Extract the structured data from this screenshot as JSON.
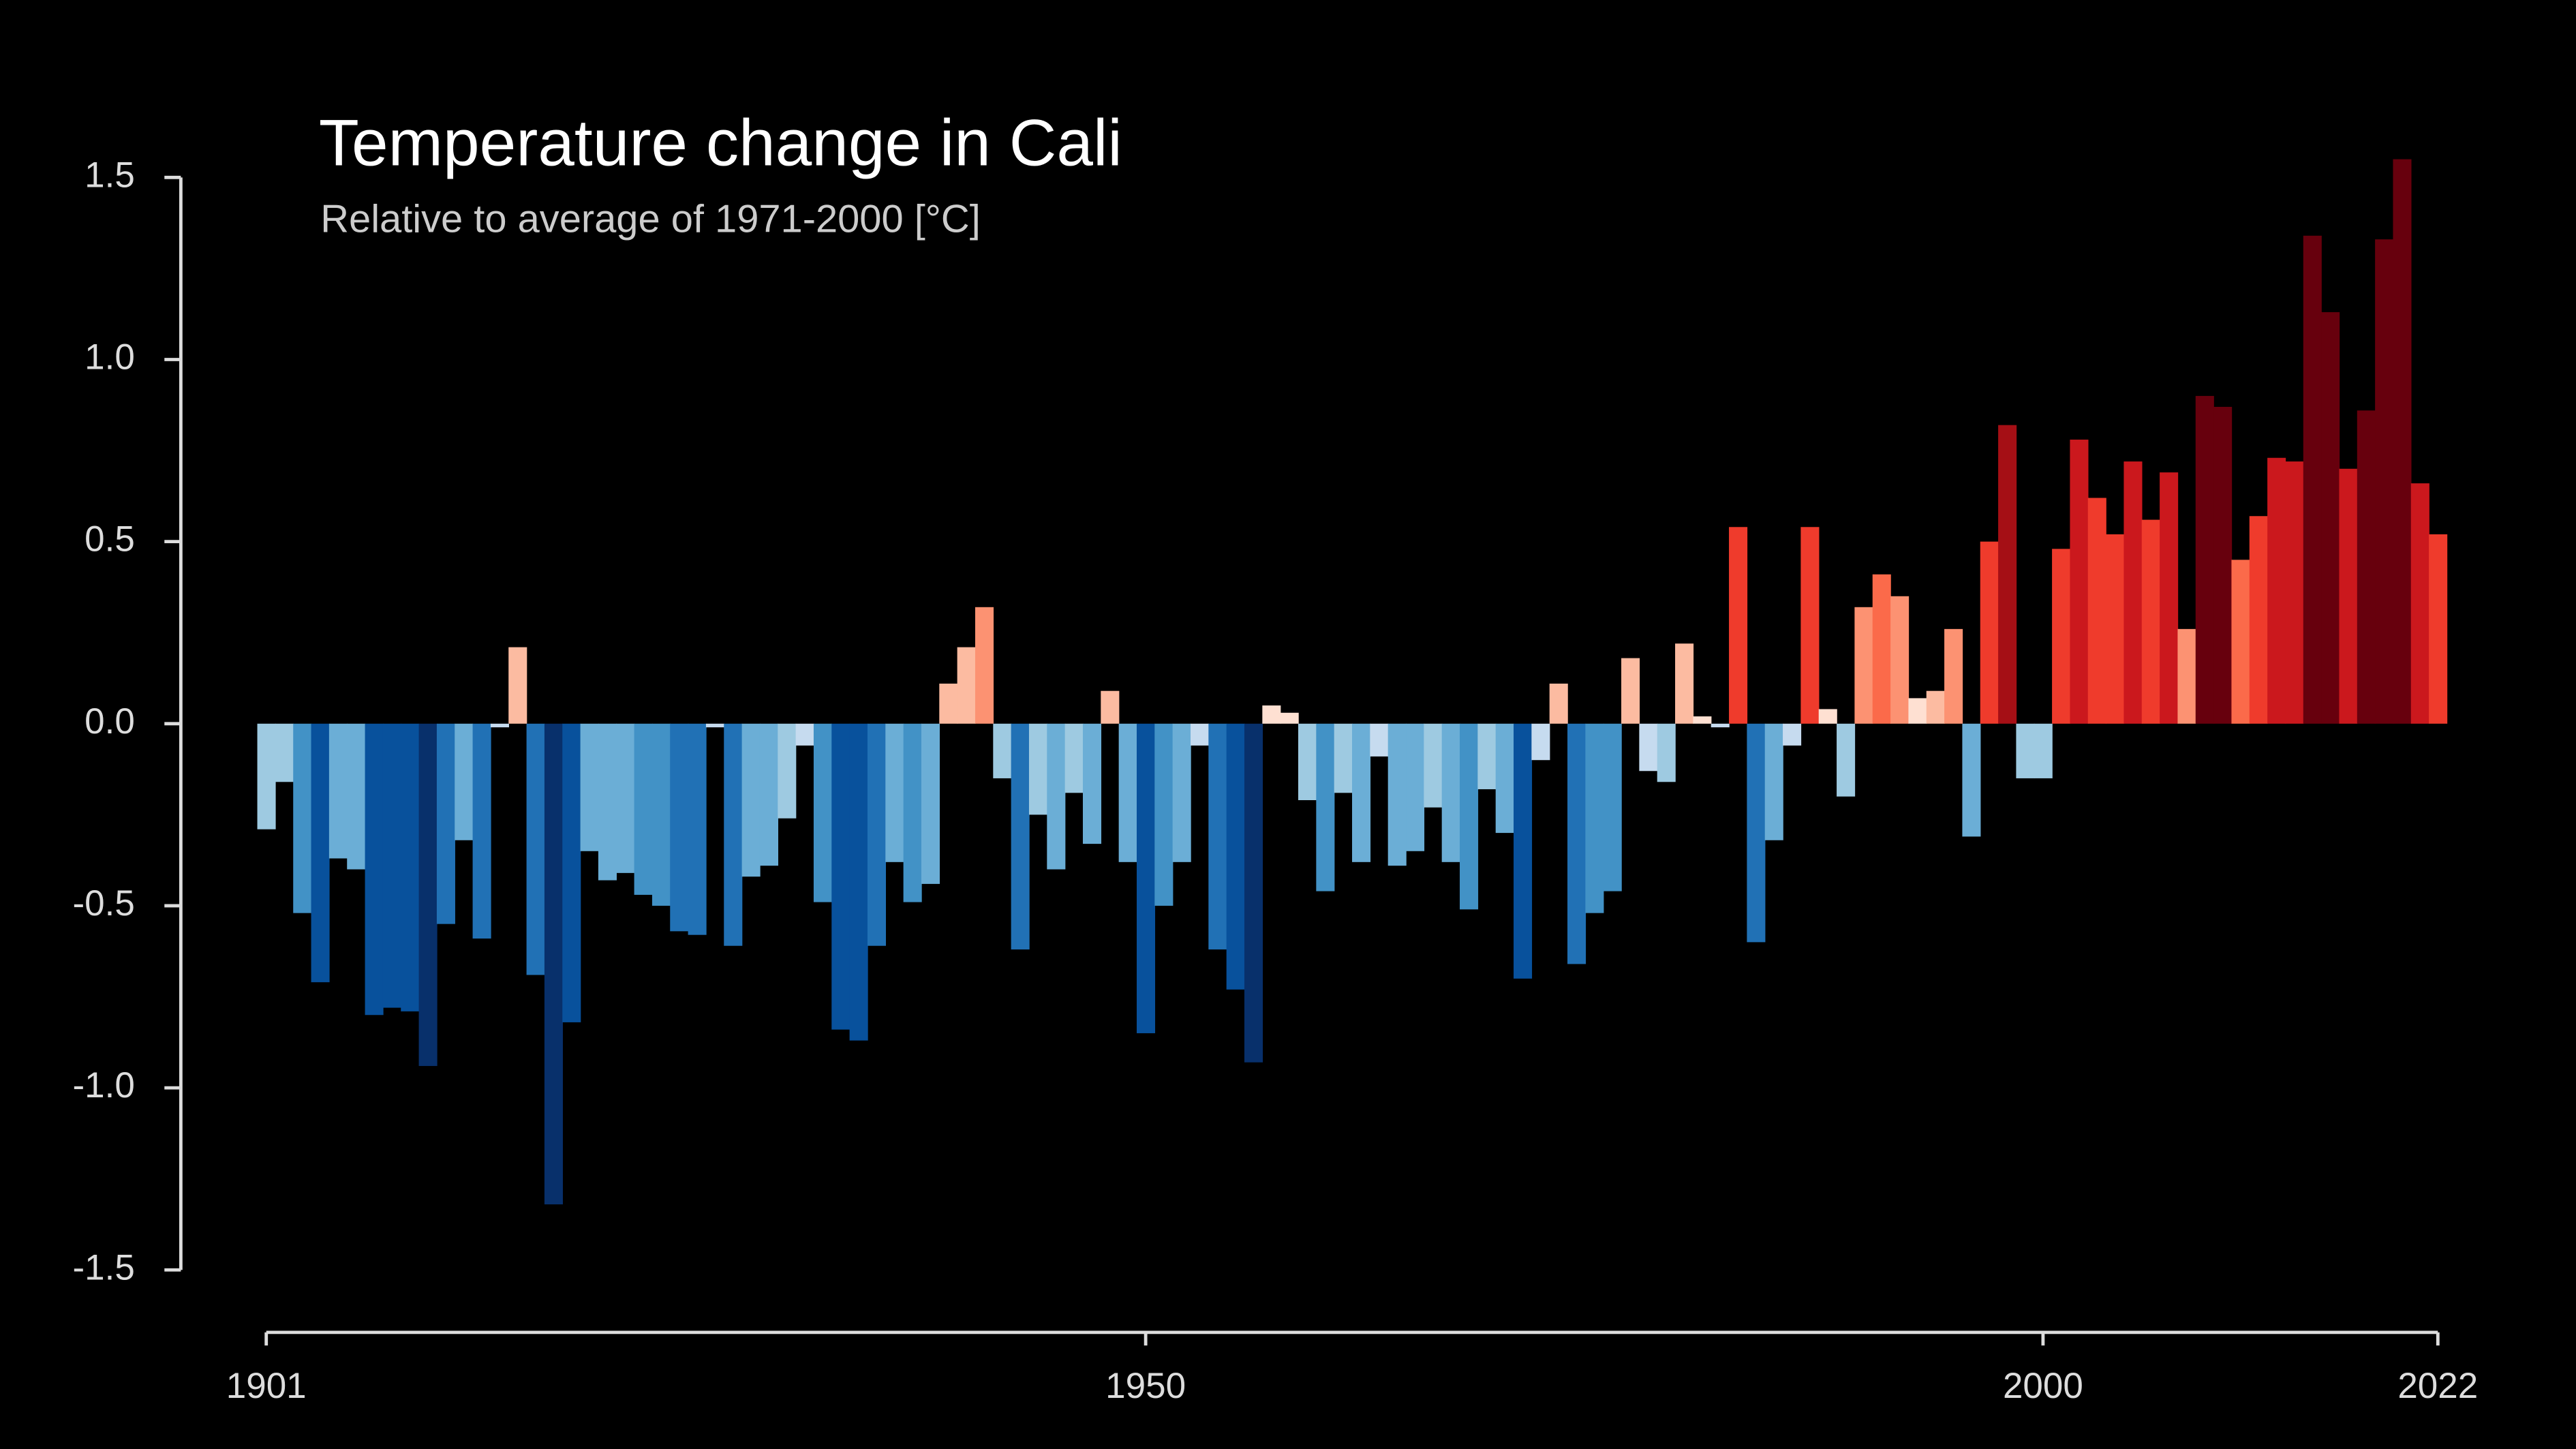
{
  "chart_data": {
    "type": "bar",
    "title": "Temperature change in Cali",
    "subtitle": "Relative to average of 1971-2000  [°C]",
    "x": [
      1901,
      1902,
      1903,
      1904,
      1905,
      1906,
      1907,
      1908,
      1909,
      1910,
      1911,
      1912,
      1913,
      1914,
      1915,
      1916,
      1917,
      1918,
      1919,
      1920,
      1921,
      1922,
      1923,
      1924,
      1925,
      1926,
      1927,
      1928,
      1929,
      1930,
      1931,
      1932,
      1933,
      1934,
      1935,
      1936,
      1937,
      1938,
      1939,
      1940,
      1941,
      1942,
      1943,
      1944,
      1945,
      1946,
      1947,
      1948,
      1949,
      1950,
      1951,
      1952,
      1953,
      1954,
      1955,
      1956,
      1957,
      1958,
      1959,
      1960,
      1961,
      1962,
      1963,
      1964,
      1965,
      1966,
      1967,
      1968,
      1969,
      1970,
      1971,
      1972,
      1973,
      1974,
      1975,
      1976,
      1977,
      1978,
      1979,
      1980,
      1981,
      1982,
      1983,
      1984,
      1985,
      1986,
      1987,
      1988,
      1989,
      1990,
      1991,
      1992,
      1993,
      1994,
      1995,
      1996,
      1997,
      1998,
      1999,
      2000,
      2001,
      2002,
      2003,
      2004,
      2005,
      2006,
      2007,
      2008,
      2009,
      2010,
      2011,
      2012,
      2013,
      2014,
      2015,
      2016,
      2017,
      2018,
      2019,
      2020,
      2021,
      2022
    ],
    "values": [
      -0.29,
      -0.16,
      -0.52,
      -0.71,
      -0.37,
      -0.4,
      -0.8,
      -0.78,
      -0.79,
      -0.94,
      -0.55,
      -0.32,
      -0.59,
      -0.01,
      0.21,
      -0.69,
      -1.32,
      -0.82,
      -0.35,
      -0.43,
      -0.41,
      -0.47,
      -0.5,
      -0.57,
      -0.58,
      -0.01,
      -0.61,
      -0.42,
      -0.39,
      -0.26,
      -0.06,
      -0.49,
      -0.84,
      -0.87,
      -0.61,
      -0.38,
      -0.49,
      -0.44,
      0.11,
      0.21,
      0.32,
      -0.15,
      -0.62,
      -0.25,
      -0.4,
      -0.19,
      -0.33,
      0.09,
      -0.38,
      -0.85,
      -0.5,
      -0.38,
      -0.06,
      -0.62,
      -0.73,
      -0.93,
      0.05,
      0.03,
      -0.21,
      -0.46,
      -0.19,
      -0.38,
      -0.09,
      -0.39,
      -0.35,
      -0.23,
      -0.38,
      -0.51,
      -0.18,
      -0.3,
      -0.7,
      -0.1,
      0.11,
      -0.66,
      -0.52,
      -0.46,
      0.18,
      -0.13,
      -0.16,
      0.22,
      0.02,
      -0.01,
      0.54,
      -0.6,
      -0.32,
      -0.06,
      0.54,
      0.04,
      -0.2,
      0.32,
      0.41,
      0.35,
      0.07,
      0.09,
      0.26,
      -0.31,
      0.5,
      0.82,
      -0.15,
      -0.15,
      0.48,
      0.78,
      0.62,
      0.52,
      0.72,
      0.56,
      0.69,
      0.26,
      0.9,
      0.87,
      0.45,
      0.57,
      0.73,
      0.72,
      1.34,
      1.13,
      0.7,
      0.86,
      1.33,
      1.55,
      0.66,
      0.52
    ],
    "colors": [
      "#9ecae1",
      "#9ecae1",
      "#4292c6",
      "#08519c",
      "#6baed6",
      "#6baed6",
      "#08519c",
      "#08519c",
      "#08519c",
      "#08306b",
      "#2171b5",
      "#6baed6",
      "#2171b5",
      "#c6dbef",
      "#fcbba1",
      "#2171b5",
      "#08306b",
      "#08519c",
      "#6baed6",
      "#6baed6",
      "#6baed6",
      "#4292c6",
      "#4292c6",
      "#2171b5",
      "#2171b5",
      "#c6dbef",
      "#2171b5",
      "#6baed6",
      "#6baed6",
      "#9ecae1",
      "#c6dbef",
      "#4292c6",
      "#08519c",
      "#08519c",
      "#2171b5",
      "#6baed6",
      "#4292c6",
      "#6baed6",
      "#fcbba1",
      "#fcbba1",
      "#fc9272",
      "#9ecae1",
      "#2171b5",
      "#9ecae1",
      "#6baed6",
      "#9ecae1",
      "#6baed6",
      "#fcbba1",
      "#6baed6",
      "#08519c",
      "#4292c6",
      "#6baed6",
      "#c6dbef",
      "#2171b5",
      "#08519c",
      "#08306b",
      "#fee0d2",
      "#fee0d2",
      "#9ecae1",
      "#4292c6",
      "#9ecae1",
      "#6baed6",
      "#c6dbef",
      "#6baed6",
      "#6baed6",
      "#9ecae1",
      "#6baed6",
      "#4292c6",
      "#9ecae1",
      "#6baed6",
      "#08519c",
      "#c6dbef",
      "#fcbba1",
      "#2171b5",
      "#4292c6",
      "#4292c6",
      "#fcbba1",
      "#c6dbef",
      "#9ecae1",
      "#fcbba1",
      "#fee0d2",
      "#c6dbef",
      "#ef3b2c",
      "#2171b5",
      "#6baed6",
      "#c6dbef",
      "#ef3b2c",
      "#fee0d2",
      "#9ecae1",
      "#fc9272",
      "#fb6a4a",
      "#fc9272",
      "#fee0d2",
      "#fcbba1",
      "#fc9272",
      "#6baed6",
      "#ef3b2c",
      "#a50f15",
      "#9ecae1",
      "#9ecae1",
      "#ef3b2c",
      "#cb181d",
      "#ef3b2c",
      "#ef3b2c",
      "#cb181d",
      "#ef3b2c",
      "#cb181d",
      "#fc9272",
      "#67000d",
      "#67000d",
      "#fb6a4a",
      "#ef3b2c",
      "#cb181d",
      "#cb181d",
      "#67000d",
      "#67000d",
      "#cb181d",
      "#67000d",
      "#67000d",
      "#67000d",
      "#cb181d",
      "#ef3b2c"
    ],
    "xlim": [
      1901,
      2022
    ],
    "xticks": [
      1901,
      1950,
      2000,
      2022
    ],
    "ylim": [
      -1.5,
      1.5
    ],
    "yticks": [
      {
        "value": -1.5,
        "label": "-1.5"
      },
      {
        "value": -1.0,
        "label": "-1.0"
      },
      {
        "value": -0.5,
        "label": "-0.5"
      },
      {
        "value": 0,
        "label": "0.0"
      },
      {
        "value": 0.5,
        "label": "0.5"
      },
      {
        "value": 1.0,
        "label": "1.0"
      },
      {
        "value": 1.5,
        "label": "1.5"
      }
    ],
    "grid": false
  }
}
